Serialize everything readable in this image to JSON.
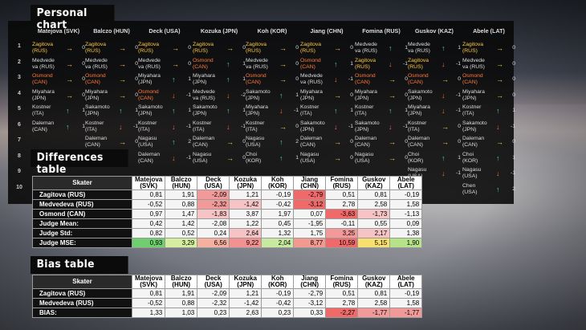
{
  "titles": {
    "personal": "Personal chart",
    "differences": "Differences table",
    "bias": "Bias table"
  },
  "judges": [
    "Matejova (SVK)",
    "Balczo (HUN)",
    "Deck (USA)",
    "Kozuka (JPN)",
    "Koh (KOR)",
    "Jiang (CHN)",
    "Fomina (RUS)",
    "Guskov (KAZ)",
    "Abele (LAT)"
  ],
  "judges_short": [
    [
      "Matejova",
      "(SVK)"
    ],
    [
      "Balczo",
      "(HUN)"
    ],
    [
      "Deck",
      "(USA)"
    ],
    [
      "Kozuka",
      "(JPN)"
    ],
    [
      "Koh",
      "(KOR)"
    ],
    [
      "Jiang",
      "(CHN)"
    ],
    [
      "Fomina",
      "(RUS)"
    ],
    [
      "Guskov",
      "(KAZ)"
    ],
    [
      "Abele",
      "(LAT)"
    ]
  ],
  "row_numbers": [
    "1",
    "2",
    "3",
    "4",
    "5",
    "6",
    "7",
    "8",
    "9",
    "10"
  ],
  "personal_chart": [
    [
      [
        "Zagitova\n(RUS)",
        "rt",
        "0",
        "gold"
      ],
      [
        "Zagitova\n(RUS)",
        "rt",
        "0",
        "gold"
      ],
      [
        "Zagitova\n(RUS)",
        "rt",
        "0",
        "gold"
      ],
      [
        "Zagitova\n(RUS)",
        "rt",
        "0",
        "gold"
      ],
      [
        "Zagitova\n(RUS)",
        "rt",
        "0",
        "gold"
      ],
      [
        "Zagitova\n(RUS)",
        "rt",
        "0",
        "gold"
      ],
      [
        "Medvede\nva (RUS)",
        "up",
        "1",
        ""
      ],
      [
        "Medvede\nva (RUS)",
        "up",
        "1",
        ""
      ],
      [
        "Zagitova\n(RUS)",
        "rt",
        "0",
        "gold"
      ]
    ],
    [
      [
        "Medvede\nva (RUS)",
        "rt",
        "0",
        ""
      ],
      [
        "Medvede\nva (RUS)",
        "rt",
        "0",
        ""
      ],
      [
        "Medvede\nva (RUS)",
        "rt",
        "0",
        ""
      ],
      [
        "Osmond\n(CAN)",
        "up",
        "1",
        "orange"
      ],
      [
        "Medvede\nva (RUS)",
        "rt",
        "0",
        ""
      ],
      [
        "Osmond\n(CAN)",
        "up",
        "1",
        "orange"
      ],
      [
        "Zagitova\n(RUS)",
        "dn",
        "-1",
        "gold"
      ],
      [
        "Zagitova\n(RUS)",
        "dn",
        "-1",
        "gold"
      ],
      [
        "Medvede\nva (RUS)",
        "rt",
        "0",
        ""
      ]
    ],
    [
      [
        "Osmond\n(CAN)",
        "rt",
        "0",
        "orange"
      ],
      [
        "Osmond\n(CAN)",
        "rt",
        "0",
        "orange"
      ],
      [
        "Miyahara\n(JPN)",
        "up",
        "1",
        ""
      ],
      [
        "Miyahara\n(JPN)",
        "up",
        "1",
        ""
      ],
      [
        "Osmond\n(CAN)",
        "rt",
        "0",
        "orange"
      ],
      [
        "Medvede\nva (RUS)",
        "dn",
        "-1",
        ""
      ],
      [
        "Osmond\n(CAN)",
        "rt",
        "0",
        "orange"
      ],
      [
        "Osmond\n(CAN)",
        "rt",
        "0",
        "orange"
      ],
      [
        "Osmond\n(CAN)",
        "rt",
        "0",
        "orange"
      ]
    ],
    [
      [
        "Miyahara\n(JPN)",
        "rt",
        "0",
        ""
      ],
      [
        "Miyahara\n(JPN)",
        "rt",
        "0",
        ""
      ],
      [
        "Osmond\n(CAN)",
        "dn",
        "-1",
        "orange"
      ],
      [
        "Medvede\nva (RUS)",
        "dn",
        "-2",
        ""
      ],
      [
        "Sakamoto\n(JPN)",
        "up",
        "1",
        ""
      ],
      [
        "Miyahara\n(JPN)",
        "rt",
        "0",
        ""
      ],
      [
        "Miyahara\n(JPN)",
        "rt",
        "0",
        ""
      ],
      [
        "Sakamoto\n(JPN)",
        "dn",
        "-1",
        ""
      ],
      [
        "Miyahara\n(JPN)",
        "rt",
        "0",
        ""
      ]
    ],
    [
      [
        "Kostner\n(ITA)",
        "up",
        "1",
        ""
      ],
      [
        "Sakamoto\n(JPN)",
        "up",
        "1",
        ""
      ],
      [
        "Sakamoto\n(JPN)",
        "up",
        "1",
        ""
      ],
      [
        "Sakamoto\n(JPN)",
        "up",
        "1",
        ""
      ],
      [
        "Miyahara\n(JPN)",
        "dn",
        "-1",
        ""
      ],
      [
        "Kostner\n(ITA)",
        "up",
        "1",
        ""
      ],
      [
        "Kostner\n(ITA)",
        "up",
        "1",
        ""
      ],
      [
        "Miyahara\n(JPN)",
        "dn",
        "-1",
        ""
      ],
      [
        "Kostner\n(ITA)",
        "up",
        "1",
        ""
      ]
    ],
    [
      [
        "Daleman\n(CAN)",
        "up",
        "1",
        ""
      ],
      [
        "Kostner\n(ITA)",
        "dn",
        "-1",
        ""
      ],
      [
        "Kostner\n(ITA)",
        "dn",
        "-1",
        ""
      ],
      [
        "Kostner\n(ITA)",
        "dn",
        "-1",
        ""
      ],
      [
        "Kostner\n(ITA)",
        "rt",
        "0",
        ""
      ],
      [
        "Sakamoto\n(JPN)",
        "dn",
        "-1",
        ""
      ],
      [
        "Sakamoto\n(JPN)",
        "dn",
        "-1",
        ""
      ],
      [
        "Kostner\n(ITA)",
        "rt",
        "0",
        ""
      ],
      [
        "Sakamoto\n(JPN)",
        "dn",
        "-1",
        ""
      ]
    ],
    [
      [
        "",
        "",
        "",
        ""
      ],
      [
        "Daleman\n(CAN)",
        "rt",
        "0",
        ""
      ],
      [
        "Nagasu\n(USA)",
        "up",
        "2",
        ""
      ],
      [
        "Daleman\n(CAN)",
        "rt",
        "0",
        ""
      ],
      [
        "Nagasu\n(USA)",
        "up",
        "2",
        ""
      ],
      [
        "Daleman\n(CAN)",
        "rt",
        "0",
        ""
      ],
      [
        "Daleman\n(CAN)",
        "rt",
        "0",
        ""
      ],
      [
        "Daleman\n(CAN)",
        "rt",
        "0",
        ""
      ],
      [
        "Daleman\n(CAN)",
        "rt",
        "0",
        ""
      ]
    ],
    [
      [
        "",
        "",
        "",
        ""
      ],
      [
        "",
        "",
        "",
        ""
      ],
      [
        "Daleman\n(CAN)",
        "dn",
        "-1",
        ""
      ],
      [
        "Nagasu\n(USA)",
        "rt",
        "0",
        ""
      ],
      [
        "Choi\n(KOR)",
        "up",
        "1",
        ""
      ],
      [
        "Nagasu\n(USA)",
        "rt",
        "0",
        ""
      ],
      [
        "Nagasu\n(USA)",
        "rt",
        "0",
        ""
      ],
      [
        "Choi\n(KOR)",
        "up",
        "1",
        ""
      ],
      [
        "Choi\n(KOR)",
        "up",
        "1",
        ""
      ]
    ],
    [
      [
        "",
        "",
        "",
        ""
      ],
      [
        "",
        "",
        "",
        ""
      ],
      [
        "",
        "",
        "",
        ""
      ],
      [
        "",
        "",
        "",
        ""
      ],
      [
        "",
        "",
        "",
        ""
      ],
      [
        "",
        "",
        "",
        ""
      ],
      [
        "",
        "",
        "",
        ""
      ],
      [
        "Nagasu\n(USA)",
        "dn",
        "-1",
        ""
      ],
      [
        "Nagasu\n(USA)",
        "dn",
        "-1",
        ""
      ]
    ],
    [
      [
        "",
        "",
        "",
        ""
      ],
      [
        "",
        "",
        "",
        ""
      ],
      [
        "",
        "",
        "",
        ""
      ],
      [
        "",
        "",
        "",
        ""
      ],
      [
        "",
        "",
        "",
        ""
      ],
      [
        "",
        "",
        "",
        ""
      ],
      [
        "",
        "",
        "",
        ""
      ],
      [
        "",
        "",
        "",
        ""
      ],
      [
        "Chen\n(USA)",
        "up",
        "2",
        ""
      ]
    ]
  ],
  "differences_table": {
    "header": "Skater",
    "rows": [
      {
        "label": "Zagitova (RUS)",
        "values": [
          "0,81",
          "1,91",
          "-2,09",
          "1,21",
          "-0,19",
          "-2,79",
          "0,51",
          "0,81",
          "-0,19"
        ]
      },
      {
        "label": "Medvedeva (RUS)",
        "values": [
          "-0,52",
          "0,88",
          "-2,32",
          "-1,42",
          "-0,42",
          "-3,12",
          "2,78",
          "2,58",
          "1,58"
        ]
      },
      {
        "label": "Osmond (CAN)",
        "values": [
          "0,97",
          "1,47",
          "-1,83",
          "3,87",
          "1,97",
          "0,07",
          "-3,63",
          "-1,73",
          "-1,13"
        ]
      },
      {
        "label": "Judge Mean:",
        "values": [
          "0,42",
          "1,42",
          "-2,08",
          "1,22",
          "0,45",
          "-1,95",
          "-0,11",
          "0,55",
          "0,09"
        ]
      },
      {
        "label": "Judge Std:",
        "values": [
          "0,82",
          "0,52",
          "0,24",
          "2,64",
          "1,32",
          "1,75",
          "3,25",
          "2,17",
          "1,38"
        ]
      },
      {
        "label": "Judge MSE:",
        "values": [
          "0,93",
          "3,29",
          "6,56",
          "9,22",
          "2,04",
          "8,77",
          "10,59",
          "5,15",
          "1,90"
        ]
      }
    ],
    "colors": [
      [
        "#f4f4f4",
        "#f4f4f4",
        "#f29a9a",
        "#f4f4f4",
        "#f4f4f4",
        "#f06a6a",
        "#f4f4f4",
        "#f4f4f4",
        "#f4f4f4"
      ],
      [
        "#f4f4f4",
        "#f4f4f4",
        "#f29a9a",
        "#f6c4c4",
        "#f4f4f4",
        "#f06a6a",
        "#f4f4f4",
        "#f4f4f4",
        "#f4f4f4"
      ],
      [
        "#f4f4f4",
        "#f4f4f4",
        "#f6c4c4",
        "#f4f4f4",
        "#f4f4f4",
        "#f4f4f4",
        "#f06a6a",
        "#f6c4c4",
        "#f4f4f4"
      ],
      [
        "#f4f4f4",
        "#f4f4f4",
        "#f4f4f4",
        "#f4f4f4",
        "#f4f4f4",
        "#f4f4f4",
        "#f4f4f4",
        "#f4f4f4",
        "#f4f4f4"
      ],
      [
        "#f4f4f4",
        "#f4f4f4",
        "#f4f4f4",
        "#f6c4c4",
        "#f4f4f4",
        "#f4f4f4",
        "#f29a9a",
        "#f6c4c4",
        "#f4f4f4"
      ],
      [
        "#6fcf6f",
        "#d6eea0",
        "#f6b0a0",
        "#f39090",
        "#c8eaa0",
        "#f39a90",
        "#f06a6a",
        "#f8e070",
        "#b6e28a"
      ]
    ]
  },
  "bias_table": {
    "header": "Skater",
    "rows": [
      {
        "label": "Zagitova (RUS)",
        "values": [
          "0,81",
          "1,91",
          "-2,09",
          "1,21",
          "-0,19",
          "-2,79",
          "0,51",
          "0,81",
          "-0,19"
        ]
      },
      {
        "label": "Medvedeva (RUS)",
        "values": [
          "-0,52",
          "0,88",
          "-2,32",
          "-1,42",
          "-0,42",
          "-3,12",
          "2,78",
          "2,58",
          "1,58"
        ]
      },
      {
        "label": "BIAS:",
        "values": [
          "1,33",
          "1,03",
          "0,23",
          "2,63",
          "0,23",
          "0,33",
          "-2,27",
          "-1,77",
          "-1,77"
        ]
      }
    ],
    "colors": [
      [
        "#f4f4f4",
        "#f4f4f4",
        "#f4f4f4",
        "#f4f4f4",
        "#f4f4f4",
        "#f4f4f4",
        "#f4f4f4",
        "#f4f4f4",
        "#f4f4f4"
      ],
      [
        "#f4f4f4",
        "#f4f4f4",
        "#f4f4f4",
        "#f4f4f4",
        "#f4f4f4",
        "#f4f4f4",
        "#f4f4f4",
        "#f4f4f4",
        "#f4f4f4"
      ],
      [
        "#f4f4f4",
        "#f4f4f4",
        "#f4f4f4",
        "#f4f4f4",
        "#f4f4f4",
        "#f4f4f4",
        "#f06a6a",
        "#f29a9a",
        "#f29a9a"
      ]
    ]
  }
}
